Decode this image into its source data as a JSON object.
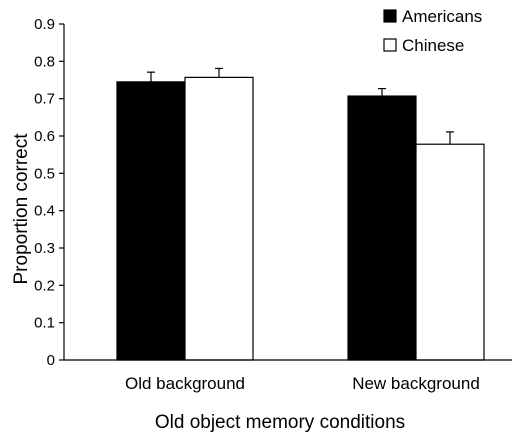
{
  "chart_data": {
    "type": "bar",
    "title": "",
    "xlabel": "Old object memory conditions",
    "ylabel": "Proportion correct",
    "categories": [
      "Old background",
      "New background"
    ],
    "ylim": [
      0,
      0.9
    ],
    "yticks": [
      "0",
      "0.1",
      "0.2",
      "0.3",
      "0.4",
      "0.5",
      "0.6",
      "0.7",
      "0.8",
      "0.9"
    ],
    "grid": false,
    "legend_position": "top-right",
    "series": [
      {
        "name": "Americans",
        "color": "#000000",
        "values": [
          0.745,
          0.707
        ],
        "errors": [
          0.026,
          0.02
        ]
      },
      {
        "name": "Chinese",
        "color": "#ffffff",
        "values": [
          0.757,
          0.578
        ],
        "errors": [
          0.024,
          0.033
        ]
      }
    ]
  }
}
